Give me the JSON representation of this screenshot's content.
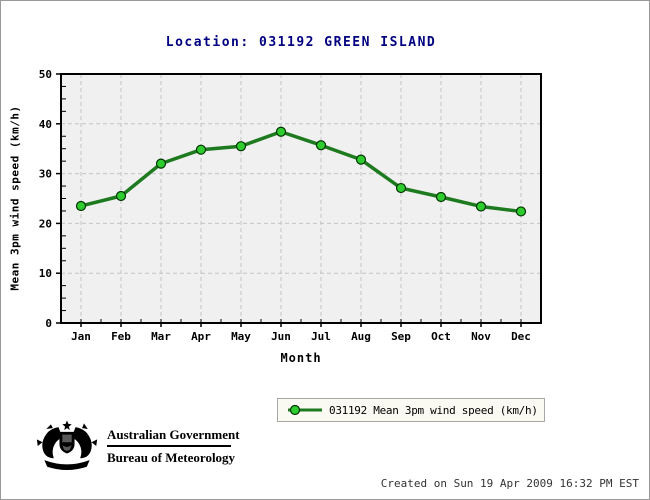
{
  "chart_data": {
    "type": "line",
    "title": "Location: 031192 GREEN ISLAND",
    "xlabel": "Month",
    "ylabel": "Mean 3pm wind speed (km/h)",
    "categories": [
      "Jan",
      "Feb",
      "Mar",
      "Apr",
      "May",
      "Jun",
      "Jul",
      "Aug",
      "Sep",
      "Oct",
      "Nov",
      "Dec"
    ],
    "series": [
      {
        "name": "031192 Mean 3pm wind speed (km/h)",
        "values": [
          23.5,
          25.5,
          32.0,
          34.8,
          35.5,
          38.4,
          35.7,
          32.8,
          27.1,
          25.3,
          23.4,
          22.4
        ]
      }
    ],
    "ylim": [
      0,
      50
    ],
    "ytick_interval": 10,
    "ytick_minor_interval": 2.5,
    "grid": true,
    "legend_position": "bottom",
    "colors": {
      "title_text": "#000080",
      "line": "#1e7a1e",
      "marker_fill": "#2ecc2e",
      "marker_edge": "#003300",
      "plot_bg": "#f0f0f0",
      "grid": "#c4c4c4",
      "frame": "#000000"
    }
  },
  "legend": {
    "label": "031192 Mean 3pm wind speed (km/h)"
  },
  "logo": {
    "government": "Australian Government",
    "bureau": "Bureau of Meteorology"
  },
  "footer": {
    "created": "Created on Sun 19 Apr 2009 16:32 PM EST"
  }
}
